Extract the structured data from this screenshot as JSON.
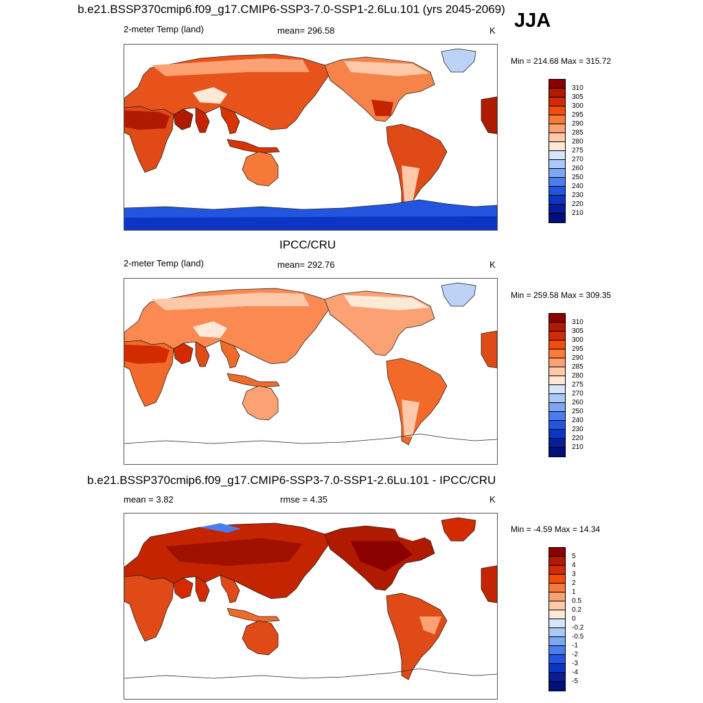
{
  "season": "JJA",
  "panel1": {
    "title": "b.e21.BSSP370cmip6.f09_g17.CMIP6-SSP3-7.0-SSP1-2.6Lu.101 (yrs 2045-2069)",
    "left": "2-meter Temp (land)",
    "center": "mean= 296.58",
    "unit": "K",
    "minmax": "Min = 214.68 Max = 315.72",
    "colorbar_labels": [
      "310",
      "305",
      "300",
      "295",
      "290",
      "285",
      "280",
      "275",
      "270",
      "260",
      "250",
      "240",
      "230",
      "220",
      "210"
    ],
    "colors": [
      "#8b0000",
      "#b01a00",
      "#d42a00",
      "#f24c0a",
      "#fa7a3a",
      "#fca173",
      "#fdc9a8",
      "#fee8d6",
      "#d6e5fb",
      "#abc8f7",
      "#7ea6f2",
      "#4a7ded",
      "#2256e0",
      "#0d35c4",
      "#061e9a",
      "#00107a"
    ]
  },
  "panel2": {
    "title": "IPCC/CRU",
    "left": "2-meter Temp (land)",
    "center": "mean= 292.76",
    "unit": "K",
    "minmax": "Min = 259.58 Max = 309.35",
    "colorbar_labels": [
      "310",
      "305",
      "300",
      "295",
      "290",
      "285",
      "280",
      "275",
      "270",
      "260",
      "250",
      "240",
      "230",
      "220",
      "210"
    ],
    "colors": [
      "#8b0000",
      "#b01a00",
      "#d42a00",
      "#f24c0a",
      "#fa7a3a",
      "#fca173",
      "#fdc9a8",
      "#fee8d6",
      "#d6e5fb",
      "#abc8f7",
      "#7ea6f2",
      "#4a7ded",
      "#2256e0",
      "#0d35c4",
      "#061e9a",
      "#00107a"
    ]
  },
  "panel3": {
    "title": "b.e21.BSSP370cmip6.f09_g17.CMIP6-SSP3-7.0-SSP1-2.6Lu.101 - IPCC/CRU",
    "left": "mean =   3.82",
    "center": "rmse =   4.35",
    "unit": "K",
    "minmax": "Min =  -4.59 Max =  14.34",
    "colorbar_labels": [
      "5",
      "4",
      "3",
      "2",
      "1",
      "0.5",
      "0.2",
      "0",
      "-0.2",
      "-0.5",
      "-1",
      "-2",
      "-3",
      "-4",
      "-5"
    ],
    "colors": [
      "#8b0000",
      "#b01a00",
      "#d42a00",
      "#f24c0a",
      "#fa7a3a",
      "#fca173",
      "#fdc9a8",
      "#fee8d6",
      "#d6e5fb",
      "#abc8f7",
      "#7ea6f2",
      "#4a7ded",
      "#2256e0",
      "#0d35c4",
      "#061e9a",
      "#00107a"
    ]
  }
}
